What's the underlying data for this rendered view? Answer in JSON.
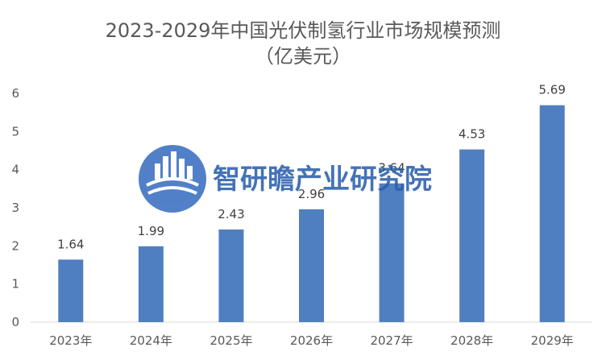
{
  "chart_data": {
    "type": "bar",
    "title": "2023-2029年中国光伏制氢行业市场规模预测",
    "subtitle": "（亿美元）",
    "xlabel": "",
    "ylabel": "",
    "categories": [
      "2023年",
      "2024年",
      "2025年",
      "2026年",
      "2027年",
      "2028年",
      "2029年"
    ],
    "series": [
      {
        "values": [
          1.64,
          1.99,
          2.43,
          2.96,
          3.64,
          4.53,
          5.69
        ]
      }
    ],
    "data_labels": [
      "1.64",
      "1.99",
      "2.43",
      "2.96",
      "3.64",
      "4.53",
      "5.69"
    ],
    "ylim": [
      0,
      6
    ],
    "yticks": [
      "0",
      "1",
      "2",
      "3",
      "4",
      "5",
      "6"
    ],
    "grid": false,
    "legend": "none",
    "bar_color": "#4f7fbf"
  },
  "watermark": {
    "text": "智研瞻产业研究院",
    "color": "#2b5fae"
  }
}
